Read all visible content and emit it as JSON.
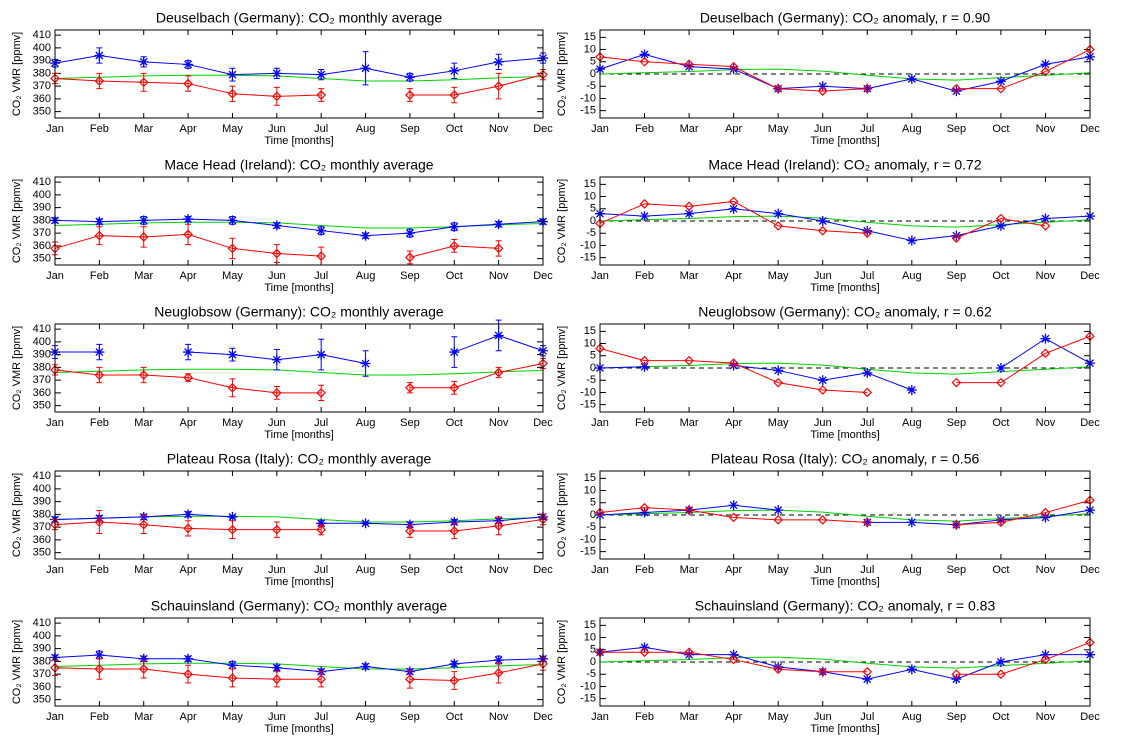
{
  "chart_data": [
    {
      "type": "line",
      "title": "Deuselbach (Germany): CO₂ monthly average",
      "ylabel": "CO₂ VMR [ppmv]",
      "xlabel": "Time [months]",
      "categories": [
        "Jan",
        "Feb",
        "Mar",
        "Apr",
        "May",
        "Jun",
        "Jul",
        "Aug",
        "Sep",
        "Oct",
        "Nov",
        "Dec"
      ],
      "ylim": [
        345,
        414
      ],
      "yticks": [
        350,
        360,
        370,
        380,
        390,
        400,
        410
      ],
      "series": [
        {
          "color": "#00d000",
          "values": [
            376,
            377,
            378,
            378.5,
            378.5,
            378,
            376,
            374,
            374,
            375,
            376.5,
            377.5
          ]
        },
        {
          "color": "#0000ff",
          "marker": "asterisk",
          "values": [
            388,
            394,
            389,
            387,
            379,
            380,
            379,
            384,
            377,
            382,
            389,
            392
          ],
          "errors": [
            3,
            6,
            4,
            3,
            5,
            4,
            4,
            13,
            3,
            6,
            6,
            4
          ]
        },
        {
          "color": "#ff0000",
          "marker": "diamond",
          "values": [
            376,
            374,
            373,
            372,
            364,
            362,
            363,
            null,
            363,
            363,
            370,
            379
          ],
          "errors": [
            4,
            6,
            7,
            6,
            6,
            7,
            5,
            null,
            5,
            6,
            10,
            4
          ]
        }
      ]
    },
    {
      "type": "line",
      "title": "Deuselbach (Germany): CO₂ anomaly, r = 0.90",
      "ylabel": "CO₂ VMR [ppmv]",
      "xlabel": "Time [months]",
      "categories": [
        "Jan",
        "Feb",
        "Mar",
        "Apr",
        "May",
        "Jun",
        "Jul",
        "Aug",
        "Sep",
        "Oct",
        "Nov",
        "Dec"
      ],
      "ylim": [
        -18,
        18
      ],
      "yticks": [
        -15,
        -10,
        -5,
        0,
        5,
        10,
        15
      ],
      "hline": 0,
      "series": [
        {
          "color": "#00d000",
          "values": [
            0,
            0.5,
            1,
            1.8,
            2,
            1.2,
            -0.5,
            -2,
            -2.5,
            -1.5,
            -0.5,
            0.5
          ]
        },
        {
          "color": "#0000ff",
          "marker": "asterisk",
          "values": [
            2,
            8,
            3,
            2,
            -6,
            -5,
            -6,
            -2,
            -7,
            -3,
            4,
            7
          ]
        },
        {
          "color": "#ff0000",
          "marker": "diamond",
          "values": [
            7,
            5,
            4,
            3,
            -6,
            -7,
            -6,
            null,
            -6,
            -6,
            1,
            10
          ]
        }
      ]
    },
    {
      "type": "line",
      "title": "Mace Head (Ireland): CO₂ monthly average",
      "ylabel": "CO₂ VMR [ppmv]",
      "xlabel": "Time [months]",
      "categories": [
        "Jan",
        "Feb",
        "Mar",
        "Apr",
        "May",
        "Jun",
        "Jul",
        "Aug",
        "Sep",
        "Oct",
        "Nov",
        "Dec"
      ],
      "ylim": [
        345,
        414
      ],
      "yticks": [
        350,
        360,
        370,
        380,
        390,
        400,
        410
      ],
      "series": [
        {
          "color": "#00d000",
          "values": [
            376,
            377,
            378,
            378.5,
            378.5,
            378,
            376,
            374,
            374,
            375,
            376.5,
            377.5
          ]
        },
        {
          "color": "#0000ff",
          "marker": "asterisk",
          "values": [
            380,
            379,
            380,
            381,
            380,
            376,
            372,
            368,
            370,
            375,
            377,
            379
          ],
          "errors": [
            2,
            2,
            3,
            2,
            3,
            2,
            3,
            2,
            3,
            3,
            2,
            2
          ]
        },
        {
          "color": "#ff0000",
          "marker": "diamond",
          "values": [
            358,
            368,
            367,
            369,
            358,
            354,
            352,
            null,
            351,
            360,
            358,
            null
          ],
          "errors": [
            5,
            7,
            8,
            8,
            8,
            7,
            7,
            null,
            5,
            5,
            6,
            null
          ]
        }
      ]
    },
    {
      "type": "line",
      "title": "Mace Head (Ireland): CO₂ anomaly, r = 0.72",
      "ylabel": "CO₂ VMR [ppmv]",
      "xlabel": "Time [months]",
      "categories": [
        "Jan",
        "Feb",
        "Mar",
        "Apr",
        "May",
        "Jun",
        "Jul",
        "Aug",
        "Sep",
        "Oct",
        "Nov",
        "Dec"
      ],
      "ylim": [
        -18,
        18
      ],
      "yticks": [
        -15,
        -10,
        -5,
        0,
        5,
        10,
        15
      ],
      "hline": 0,
      "series": [
        {
          "color": "#00d000",
          "values": [
            0,
            0.5,
            1,
            1.8,
            2,
            1.2,
            -0.5,
            -2,
            -2.5,
            -1.5,
            -0.5,
            0.5
          ]
        },
        {
          "color": "#0000ff",
          "marker": "asterisk",
          "values": [
            3,
            2,
            3,
            5,
            3,
            0,
            -4,
            -8,
            -6,
            -2,
            1,
            2
          ]
        },
        {
          "color": "#ff0000",
          "marker": "diamond",
          "values": [
            -1,
            7,
            6,
            8,
            -2,
            -4,
            -5,
            null,
            -7,
            1,
            -2,
            null
          ]
        }
      ]
    },
    {
      "type": "line",
      "title": "Neuglobsow (Germany): CO₂ monthly average",
      "ylabel": "CO₂ VMR [ppmv]",
      "xlabel": "Time [months]",
      "categories": [
        "Jan",
        "Feb",
        "Mar",
        "Apr",
        "May",
        "Jun",
        "Jul",
        "Aug",
        "Sep",
        "Oct",
        "Nov",
        "Dec"
      ],
      "ylim": [
        345,
        414
      ],
      "yticks": [
        350,
        360,
        370,
        380,
        390,
        400,
        410
      ],
      "series": [
        {
          "color": "#00d000",
          "values": [
            376,
            377,
            378,
            378.5,
            378.5,
            378,
            376,
            374,
            374,
            375,
            376.5,
            377.5
          ]
        },
        {
          "color": "#0000ff",
          "marker": "asterisk",
          "values": [
            392,
            392,
            null,
            392,
            390,
            386,
            390,
            383,
            null,
            392,
            405,
            393
          ],
          "errors": [
            5,
            6,
            null,
            6,
            5,
            8,
            12,
            10,
            null,
            12,
            12,
            4
          ]
        },
        {
          "color": "#ff0000",
          "marker": "diamond",
          "values": [
            378,
            374,
            374,
            372,
            364,
            360,
            360,
            null,
            364,
            364,
            376,
            383
          ],
          "errors": [
            4,
            6,
            6,
            3,
            7,
            5,
            6,
            null,
            4,
            5,
            4,
            4
          ]
        }
      ]
    },
    {
      "type": "line",
      "title": "Neuglobsow (Germany): CO₂ anomaly, r = 0.62",
      "ylabel": "CO₂ VMR [ppmv]",
      "xlabel": "Time [months]",
      "categories": [
        "Jan",
        "Feb",
        "Mar",
        "Apr",
        "May",
        "Jun",
        "Jul",
        "Aug",
        "Sep",
        "Oct",
        "Nov",
        "Dec"
      ],
      "ylim": [
        -18,
        18
      ],
      "yticks": [
        -15,
        -10,
        -5,
        0,
        5,
        10,
        15
      ],
      "hline": 0,
      "series": [
        {
          "color": "#00d000",
          "values": [
            0,
            0.5,
            1,
            1.8,
            2,
            1.2,
            -0.5,
            -2,
            -2.5,
            -1.5,
            -0.5,
            0.5
          ]
        },
        {
          "color": "#0000ff",
          "marker": "asterisk",
          "values": [
            0,
            0.5,
            null,
            1,
            -1,
            -5,
            -2,
            -9,
            null,
            0,
            12,
            2
          ]
        },
        {
          "color": "#ff0000",
          "marker": "diamond",
          "values": [
            8,
            3,
            3,
            2,
            -6,
            -9,
            -10,
            null,
            -6,
            -6,
            6,
            13
          ]
        }
      ]
    },
    {
      "type": "line",
      "title": "Plateau Rosa (Italy): CO₂ monthly average",
      "ylabel": "CO₂ VMR [ppmv]",
      "xlabel": "Time [months]",
      "categories": [
        "Jan",
        "Feb",
        "Mar",
        "Apr",
        "May",
        "Jun",
        "Jul",
        "Aug",
        "Sep",
        "Oct",
        "Nov",
        "Dec"
      ],
      "ylim": [
        345,
        414
      ],
      "yticks": [
        350,
        360,
        370,
        380,
        390,
        400,
        410
      ],
      "series": [
        {
          "color": "#00d000",
          "values": [
            376,
            377,
            378,
            378.5,
            378.5,
            378,
            376,
            374,
            374,
            375,
            376.5,
            377.5
          ]
        },
        {
          "color": "#0000ff",
          "marker": "asterisk",
          "values": [
            376,
            377,
            378,
            380,
            378,
            null,
            373,
            373,
            372,
            374,
            375,
            378
          ],
          "errors": [
            2,
            2,
            2,
            2,
            1,
            null,
            2,
            1,
            2,
            2,
            2,
            2
          ]
        },
        {
          "color": "#ff0000",
          "marker": "diamond",
          "values": [
            372,
            374,
            372,
            369,
            368,
            368,
            368,
            null,
            367,
            367,
            371,
            376
          ],
          "errors": [
            4,
            9,
            7,
            6,
            7,
            6,
            4,
            null,
            5,
            6,
            7,
            4
          ]
        }
      ]
    },
    {
      "type": "line",
      "title": "Plateau Rosa (Italy): CO₂ anomaly, r = 0.56",
      "ylabel": "CO₂ VMR [ppmv]",
      "xlabel": "Time [months]",
      "categories": [
        "Jan",
        "Feb",
        "Mar",
        "Apr",
        "May",
        "Jun",
        "Jul",
        "Aug",
        "Sep",
        "Oct",
        "Nov",
        "Dec"
      ],
      "ylim": [
        -18,
        18
      ],
      "yticks": [
        -15,
        -10,
        -5,
        0,
        5,
        10,
        15
      ],
      "hline": 0,
      "series": [
        {
          "color": "#00d000",
          "values": [
            0,
            0.5,
            1,
            1.8,
            2,
            1.2,
            -0.5,
            -2,
            -2.5,
            -1.5,
            -0.5,
            0.5
          ]
        },
        {
          "color": "#0000ff",
          "marker": "asterisk",
          "values": [
            0,
            1,
            2,
            4,
            2,
            null,
            -3,
            -3,
            -4,
            -2,
            -1,
            2
          ]
        },
        {
          "color": "#ff0000",
          "marker": "diamond",
          "values": [
            1,
            3,
            2,
            -1,
            -2,
            -2,
            -3,
            null,
            -4,
            -3,
            1,
            6
          ]
        }
      ]
    },
    {
      "type": "line",
      "title": "Schauinsland (Germany): CO₂ monthly average",
      "ylabel": "CO₂ VMR [ppmv]",
      "xlabel": "Time [months]",
      "categories": [
        "Jan",
        "Feb",
        "Mar",
        "Apr",
        "May",
        "Jun",
        "Jul",
        "Aug",
        "Sep",
        "Oct",
        "Nov",
        "Dec"
      ],
      "ylim": [
        345,
        414
      ],
      "yticks": [
        350,
        360,
        370,
        380,
        390,
        400,
        410
      ],
      "series": [
        {
          "color": "#00d000",
          "values": [
            376,
            377,
            378,
            378.5,
            378.5,
            378,
            376,
            374,
            374,
            375,
            376.5,
            377.5
          ]
        },
        {
          "color": "#0000ff",
          "marker": "asterisk",
          "values": [
            383,
            385,
            382,
            382,
            377,
            375,
            372,
            376,
            372,
            378,
            381,
            382
          ],
          "errors": [
            2,
            3,
            2,
            2,
            3,
            2,
            2,
            2,
            2,
            2,
            3,
            2
          ]
        },
        {
          "color": "#ff0000",
          "marker": "diamond",
          "values": [
            375,
            374,
            374,
            370,
            367,
            366,
            366,
            null,
            366,
            365,
            371,
            378
          ],
          "errors": [
            6,
            8,
            7,
            7,
            7,
            6,
            6,
            null,
            7,
            7,
            8,
            5
          ]
        }
      ]
    },
    {
      "type": "line",
      "title": "Schauinsland (Germany): CO₂ anomaly, r = 0.83",
      "ylabel": "CO₂ VMR [ppmv]",
      "xlabel": "Time [months]",
      "categories": [
        "Jan",
        "Feb",
        "Mar",
        "Apr",
        "May",
        "Jun",
        "Jul",
        "Aug",
        "Sep",
        "Oct",
        "Nov",
        "Dec"
      ],
      "ylim": [
        -18,
        18
      ],
      "yticks": [
        -15,
        -10,
        -5,
        0,
        5,
        10,
        15
      ],
      "hline": 0,
      "series": [
        {
          "color": "#00d000",
          "values": [
            0,
            0.5,
            1,
            1.8,
            2,
            1.2,
            -0.5,
            -2,
            -2.5,
            -1.5,
            -0.5,
            0.5
          ]
        },
        {
          "color": "#0000ff",
          "marker": "asterisk",
          "values": [
            4,
            6,
            3,
            3,
            -2,
            -4,
            -7,
            -3,
            -7,
            0,
            3,
            3
          ]
        },
        {
          "color": "#ff0000",
          "marker": "diamond",
          "values": [
            4,
            4,
            4,
            1,
            -3,
            -4,
            -4,
            null,
            -5,
            -5,
            1,
            8
          ]
        }
      ]
    }
  ]
}
